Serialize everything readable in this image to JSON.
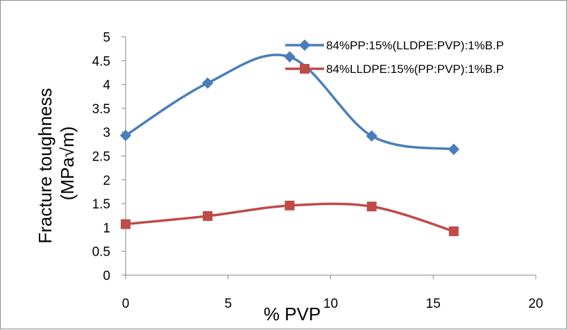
{
  "chart_data": {
    "type": "line",
    "title": "",
    "xlabel": "% PVP",
    "ylabel_lines": [
      "Fracture toughness",
      "(MPa√m)"
    ],
    "xlim": [
      0,
      20
    ],
    "ylim": [
      0,
      5
    ],
    "xticks": [
      "0",
      "5",
      "10",
      "15",
      "20"
    ],
    "yticks": [
      "0",
      "0.5",
      "1",
      "1.5",
      "2",
      "2.5",
      "3",
      "3.5",
      "4",
      "4.5",
      "5"
    ],
    "grid": false,
    "smooth": true,
    "legend_position": "top-right",
    "series": [
      {
        "name": "84%PP:15%(LLDPE:PVP):1%B.P",
        "color": "#4a7ebb",
        "marker": "diamond",
        "x": [
          0,
          4,
          8,
          12,
          16
        ],
        "y": [
          2.93,
          4.03,
          4.58,
          2.92,
          2.64
        ]
      },
      {
        "name": "84%LLDPE:15%(PP:PVP):1%B.P",
        "color": "#be4b48",
        "marker": "square",
        "x": [
          0,
          4,
          8,
          12,
          16
        ],
        "y": [
          1.07,
          1.24,
          1.46,
          1.44,
          0.92
        ]
      }
    ]
  }
}
